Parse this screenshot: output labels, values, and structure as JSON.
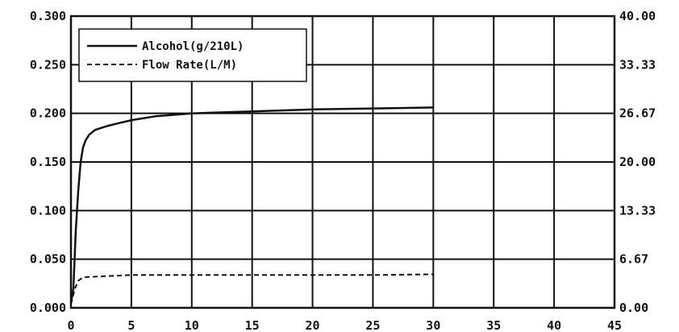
{
  "chart_data": {
    "type": "line",
    "title": "",
    "xlabel": "",
    "ylabel": "",
    "y2label": "",
    "xlim": [
      0,
      45
    ],
    "ylim": [
      0,
      0.3
    ],
    "y2lim": [
      0,
      40
    ],
    "grid": true,
    "legend_position": "top-left",
    "x_ticks": [
      "0",
      "5",
      "10",
      "15",
      "20",
      "25",
      "30",
      "35",
      "40",
      "45"
    ],
    "y_ticks": [
      "0.000",
      "0.050",
      "0.100",
      "0.150",
      "0.200",
      "0.250",
      "0.300"
    ],
    "y2_ticks": [
      "0.00",
      "6.67",
      "13.33",
      "20.00",
      "26.67",
      "33.33",
      "40.00"
    ],
    "series": [
      {
        "name": "Alcohol(g/210L)",
        "axis": "left",
        "style": "solid",
        "x": [
          0,
          0.2,
          0.4,
          0.6,
          0.8,
          1.0,
          1.2,
          1.5,
          2,
          3,
          4,
          5,
          7,
          10,
          15,
          20,
          25,
          30
        ],
        "y": [
          0.005,
          0.02,
          0.08,
          0.12,
          0.15,
          0.165,
          0.172,
          0.178,
          0.183,
          0.187,
          0.19,
          0.193,
          0.197,
          0.2,
          0.202,
          0.204,
          0.205,
          0.206
        ]
      },
      {
        "name": "Flow Rate(L/M)",
        "axis": "right",
        "style": "dashed",
        "x": [
          0,
          0.3,
          0.6,
          1,
          5,
          10,
          15,
          20,
          25,
          30
        ],
        "y": [
          0.5,
          2.5,
          3.7,
          4.2,
          4.5,
          4.5,
          4.5,
          4.5,
          4.5,
          4.6
        ]
      }
    ],
    "colors": {
      "line": "#111111",
      "grid": "#111111",
      "background": "#ffffff"
    }
  }
}
